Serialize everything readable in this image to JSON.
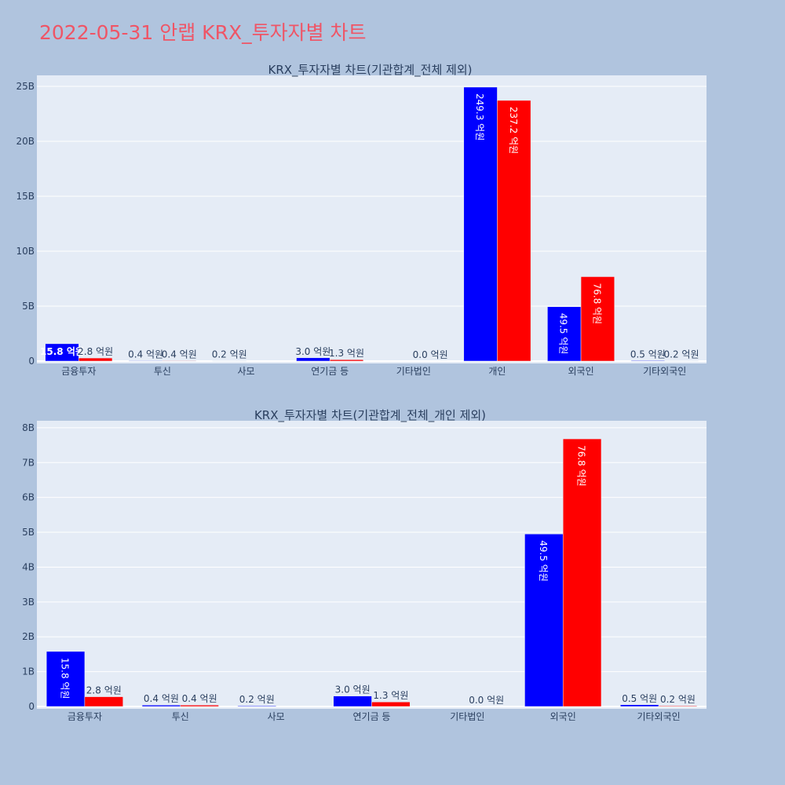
{
  "page": {
    "title": "2022-05-31 안랩 KRX_투자자별 차트"
  },
  "chart_data": [
    {
      "type": "bar",
      "title": "KRX_투자자별 차트(기관합계_전체 제외)",
      "categories": [
        "금융투자",
        "투신",
        "사모",
        "연기금 등",
        "기타법인",
        "개인",
        "외국인",
        "기타외국인"
      ],
      "series": [
        {
          "color": "#0000ff",
          "values": [
            1580000000,
            40000000,
            20000000,
            300000000,
            0,
            24930000000,
            4950000000,
            50000000
          ],
          "labels": [
            "15.8 억원",
            "0.4 억원",
            "0.2 억원",
            "3.0 억원",
            "",
            "249.3 억원",
            "49.5 억원",
            "0.5 억원"
          ]
        },
        {
          "color": "#ff0000",
          "values": [
            280000000,
            40000000,
            0,
            130000000,
            0,
            23720000000,
            7680000000,
            20000000
          ],
          "labels": [
            "2.8 억원",
            "0.4 억원",
            "",
            "1.3 억원",
            "0.0 억원",
            "237.2 억원",
            "76.8 억원",
            "0.2 억원"
          ]
        }
      ],
      "ylim": [
        0,
        26000000000
      ],
      "yticks": [
        0,
        5000000000,
        10000000000,
        15000000000,
        20000000000,
        25000000000
      ],
      "ytick_labels": [
        "0",
        "5B",
        "10B",
        "15B",
        "20B",
        "25B"
      ],
      "grid": true
    },
    {
      "type": "bar",
      "title": "KRX_투자자별 차트(기관합계_전체_개인 제외)",
      "categories": [
        "금융투자",
        "투신",
        "사모",
        "연기금 등",
        "기타법인",
        "외국인",
        "기타외국인"
      ],
      "series": [
        {
          "color": "#0000ff",
          "values": [
            1580000000,
            40000000,
            20000000,
            300000000,
            0,
            4950000000,
            50000000
          ],
          "labels": [
            "15.8 억원",
            "0.4 억원",
            "0.2 억원",
            "3.0 억원",
            "",
            "49.5 억원",
            "0.5 억원"
          ]
        },
        {
          "color": "#ff0000",
          "values": [
            280000000,
            40000000,
            0,
            130000000,
            0,
            7680000000,
            20000000
          ],
          "labels": [
            "2.8 억원",
            "0.4 억원",
            "",
            "1.3 억원",
            "0.0 억원",
            "76.8 억원",
            "0.2 억원"
          ]
        }
      ],
      "ylim": [
        0,
        8200000000
      ],
      "yticks": [
        0,
        1000000000,
        2000000000,
        3000000000,
        4000000000,
        5000000000,
        6000000000,
        7000000000,
        8000000000
      ],
      "ytick_labels": [
        "0",
        "1B",
        "2B",
        "3B",
        "4B",
        "5B",
        "6B",
        "7B",
        "8B"
      ],
      "grid": true
    }
  ]
}
